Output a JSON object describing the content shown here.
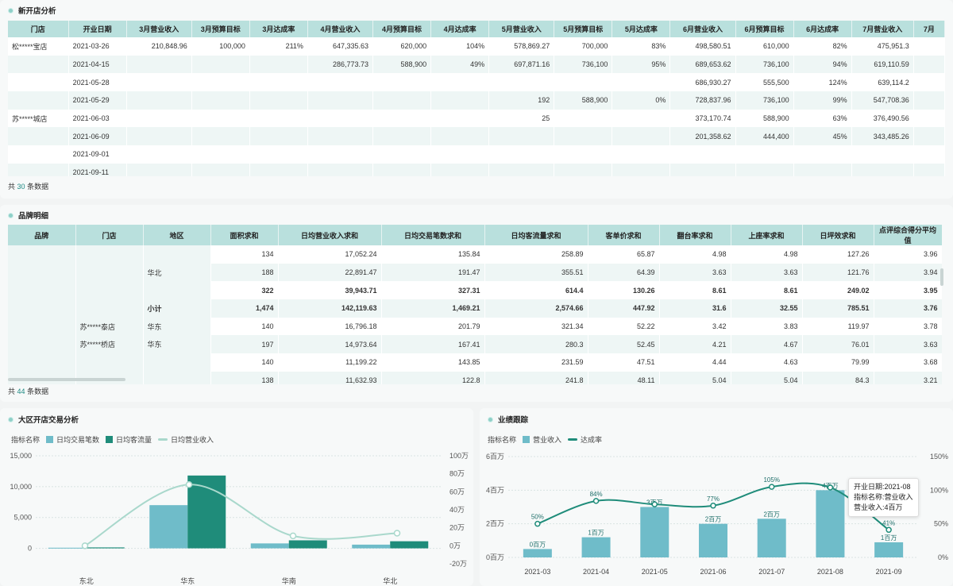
{
  "new_store_panel": {
    "title": "新开店分析",
    "headers": [
      "门店",
      "开业日期",
      "3月营业收入",
      "3月预算目标",
      "3月达成率",
      "4月营业收入",
      "4月预算目标",
      "4月达成率",
      "5月营业收入",
      "5月预算目标",
      "5月达成率",
      "6月营业收入",
      "6月预算目标",
      "6月达成率",
      "7月营业收入",
      "7月"
    ],
    "rows": [
      [
        "松*****宝店",
        "2021-03-26",
        "210,848.96",
        "100,000",
        "211%",
        "647,335.63",
        "620,000",
        "104%",
        "578,869.27",
        "700,000",
        "83%",
        "498,580.51",
        "610,000",
        "82%",
        "475,951.3",
        ""
      ],
      [
        "",
        "2021-04-15",
        "",
        "",
        "",
        "286,773.73",
        "588,900",
        "49%",
        "697,871.16",
        "736,100",
        "95%",
        "689,653.62",
        "736,100",
        "94%",
        "619,110.59",
        ""
      ],
      [
        "",
        "2021-05-28",
        "",
        "",
        "",
        "",
        "",
        "",
        "",
        "",
        "",
        "686,930.27",
        "555,500",
        "124%",
        "639,114.2",
        ""
      ],
      [
        "",
        "2021-05-29",
        "",
        "",
        "",
        "",
        "",
        "",
        "192",
        "588,900",
        "0%",
        "728,837.96",
        "736,100",
        "99%",
        "547,708.36",
        ""
      ],
      [
        "苏*****城店",
        "2021-06-03",
        "",
        "",
        "",
        "",
        "",
        "",
        "25",
        "",
        "",
        "373,170.74",
        "588,900",
        "63%",
        "376,490.56",
        ""
      ],
      [
        "",
        "2021-06-09",
        "",
        "",
        "",
        "",
        "",
        "",
        "",
        "",
        "",
        "201,358.62",
        "444,400",
        "45%",
        "343,485.26",
        ""
      ],
      [
        "",
        "2021-09-01",
        "",
        "",
        "",
        "",
        "",
        "",
        "",
        "",
        "",
        "",
        "",
        "",
        "",
        ""
      ],
      [
        "",
        "2021-09-11",
        "",
        "",
        "",
        "",
        "",
        "",
        "",
        "",
        "",
        "",
        "",
        "",
        "",
        ""
      ]
    ],
    "count_prefix": "共",
    "count": "30",
    "count_suffix": "条数据"
  },
  "brand_panel": {
    "title": "品牌明细",
    "headers": [
      "品牌",
      "门店",
      "地区",
      "面积求和",
      "日均营业收入求和",
      "日均交易笔数求和",
      "日均客流量求和",
      "客单价求和",
      "翻台率求和",
      "上座率求和",
      "日坪效求和",
      "点评综合得分平均值"
    ],
    "rows": [
      {
        "brand": "",
        "store": "",
        "region": "",
        "vals": [
          "134",
          "17,052.24",
          "135.84",
          "258.89",
          "65.87",
          "4.98",
          "4.98",
          "127.26",
          "3.96"
        ],
        "bold": false
      },
      {
        "brand": "",
        "store": "",
        "region": "华北",
        "vals": [
          "188",
          "22,891.47",
          "191.47",
          "355.51",
          "64.39",
          "3.63",
          "3.63",
          "121.76",
          "3.94"
        ],
        "bold": false
      },
      {
        "brand": "",
        "store": "",
        "region": "",
        "vals": [
          "322",
          "39,943.71",
          "327.31",
          "614.4",
          "130.26",
          "8.61",
          "8.61",
          "249.02",
          "3.95"
        ],
        "bold": true
      },
      {
        "brand": "",
        "store": "",
        "region": "小计",
        "vals": [
          "1,474",
          "142,119.63",
          "1,469.21",
          "2,574.66",
          "447.92",
          "31.6",
          "32.55",
          "785.51",
          "3.76"
        ],
        "bold": true
      },
      {
        "brand": "",
        "store": "苏*****泰店",
        "region": "华东",
        "vals": [
          "140",
          "16,796.18",
          "201.79",
          "321.34",
          "52.22",
          "3.42",
          "3.83",
          "119.97",
          "3.78"
        ],
        "bold": false
      },
      {
        "brand": "",
        "store": "苏*****桥店",
        "region": "华东",
        "vals": [
          "197",
          "14,973.64",
          "167.41",
          "280.3",
          "52.45",
          "4.21",
          "4.67",
          "76.01",
          "3.63"
        ],
        "bold": false
      },
      {
        "brand": "",
        "store": "",
        "region": "",
        "vals": [
          "140",
          "11,199.22",
          "143.85",
          "231.59",
          "47.51",
          "4.44",
          "4.63",
          "79.99",
          "3.68"
        ],
        "bold": false
      },
      {
        "brand": "",
        "store": "",
        "region": "",
        "vals": [
          "138",
          "11,632.93",
          "122.8",
          "241.8",
          "48.11",
          "5.04",
          "5.04",
          "84.3",
          "3.21"
        ],
        "bold": false
      }
    ],
    "count_prefix": "共",
    "count": "44",
    "count_suffix": "条数据"
  },
  "region_panel": {
    "title": "大区开店交易分析",
    "legend_label": "指标名称",
    "legend": [
      "日均交易笔数",
      "日均客流量",
      "日均营业收入"
    ]
  },
  "perf_panel": {
    "title": "业绩跟踪",
    "legend_label": "指标名称",
    "legend": [
      "营业收入",
      "达成率"
    ],
    "tooltip": {
      "line1": "开业日期:2021-08",
      "line2": "指标名称:营业收入",
      "line3": "营业收入:4百万"
    }
  },
  "colors": {
    "light": "#6fbcc9",
    "dark": "#1f8c7a",
    "line_light": "#a9d8cc",
    "line_dark": "#1f8c7a",
    "header": "#b9e0dd"
  },
  "chart_data": [
    {
      "type": "bar",
      "title": "大区开店交易分析",
      "categories": [
        "东北",
        "华东",
        "华南",
        "华北"
      ],
      "series": [
        {
          "name": "日均交易笔数",
          "type": "bar",
          "axis": "left",
          "values": [
            100,
            7000,
            800,
            600
          ]
        },
        {
          "name": "日均客流量",
          "type": "bar",
          "axis": "left",
          "values": [
            150,
            11800,
            1300,
            1150
          ]
        },
        {
          "name": "日均营业收入",
          "type": "line",
          "axis": "right",
          "values": [
            0,
            68,
            11,
            14
          ]
        }
      ],
      "y_left_ticks": [
        "0",
        "5,000",
        "10,000",
        "15,000"
      ],
      "y_left_range": [
        -2500,
        15000
      ],
      "y_right_ticks": [
        "-20万",
        "0万",
        "20万",
        "40万",
        "60万",
        "80万",
        "100万"
      ],
      "y_right_range": [
        -20,
        100
      ],
      "y_right_unit": "万"
    },
    {
      "type": "bar",
      "title": "业绩跟踪",
      "categories": [
        "2021-03",
        "2021-04",
        "2021-05",
        "2021-06",
        "2021-07",
        "2021-08",
        "2021-09"
      ],
      "series": [
        {
          "name": "营业收入",
          "type": "bar",
          "axis": "left",
          "values": [
            0.5,
            1.2,
            3.0,
            2.0,
            2.3,
            4.0,
            0.9
          ],
          "labels": [
            "0百万",
            "1百万",
            "3百万",
            "2百万",
            "2百万",
            "4百万",
            "1百万"
          ]
        },
        {
          "name": "达成率",
          "type": "line",
          "axis": "right",
          "values": [
            50,
            84,
            79,
            77,
            105,
            104,
            41
          ],
          "labels": [
            "50%",
            "84%",
            "",
            "77%",
            "105%",
            "",
            "41%"
          ]
        }
      ],
      "y_left_ticks": [
        "0百万",
        "2百万",
        "4百万",
        "6百万"
      ],
      "y_left_range": [
        0,
        6
      ],
      "y_right_ticks": [
        "0%",
        "50%",
        "100%",
        "150%"
      ],
      "y_right_range": [
        0,
        150
      ]
    }
  ]
}
